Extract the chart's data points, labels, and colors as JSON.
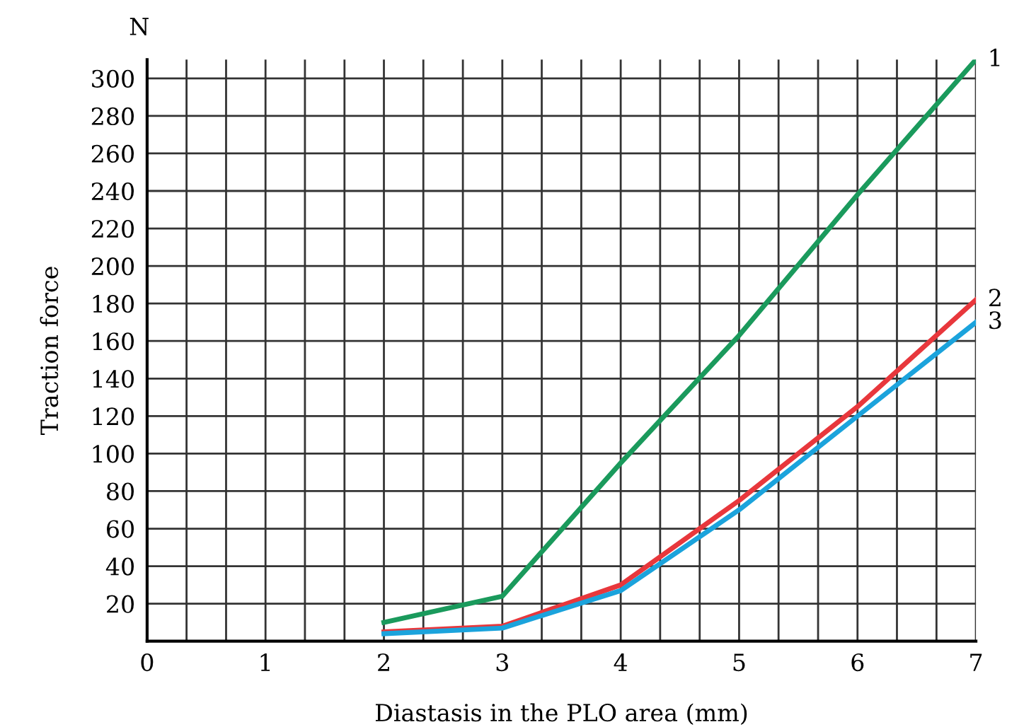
{
  "chart_data": {
    "type": "line",
    "xlabel": "Diastasis in the PLO area (mm)",
    "ylabel": "Traction force",
    "annotations": [
      "N"
    ],
    "x": [
      2,
      3,
      4,
      5,
      6,
      7
    ],
    "series": [
      {
        "name": "1",
        "color": "#1a9a5c",
        "values": [
          10,
          24,
          95,
          163,
          238,
          310
        ]
      },
      {
        "name": "2",
        "color": "#e8373c",
        "values": [
          5,
          8,
          30,
          75,
          125,
          182
        ]
      },
      {
        "name": "3",
        "color": "#1ba3dc",
        "values": [
          4,
          7,
          27,
          70,
          120,
          170
        ]
      }
    ],
    "xlim": [
      0,
      7
    ],
    "ylim": [
      0,
      310
    ],
    "xticks": [
      0,
      {
        "value": 0.333,
        "label": null
      },
      {
        "value": 0.667,
        "label": null
      },
      1,
      {
        "value": 1.333,
        "label": null
      },
      {
        "value": 1.667,
        "label": null
      },
      2,
      {
        "value": 2.333,
        "label": null
      },
      {
        "value": 2.667,
        "label": null
      },
      3,
      {
        "value": 3.333,
        "label": null
      },
      {
        "value": 3.667,
        "label": null
      },
      4,
      {
        "value": 4.333,
        "label": null
      },
      {
        "value": 4.667,
        "label": null
      },
      5,
      {
        "value": 5.333,
        "label": null
      },
      {
        "value": 5.667,
        "label": null
      },
      6,
      {
        "value": 6.333,
        "label": null
      },
      {
        "value": 6.667,
        "label": null
      },
      7
    ],
    "yticks": [
      20,
      40,
      60,
      80,
      100,
      120,
      140,
      160,
      180,
      200,
      220,
      240,
      260,
      280,
      300
    ],
    "grid": true,
    "marker": "none",
    "line_style": "solid"
  }
}
